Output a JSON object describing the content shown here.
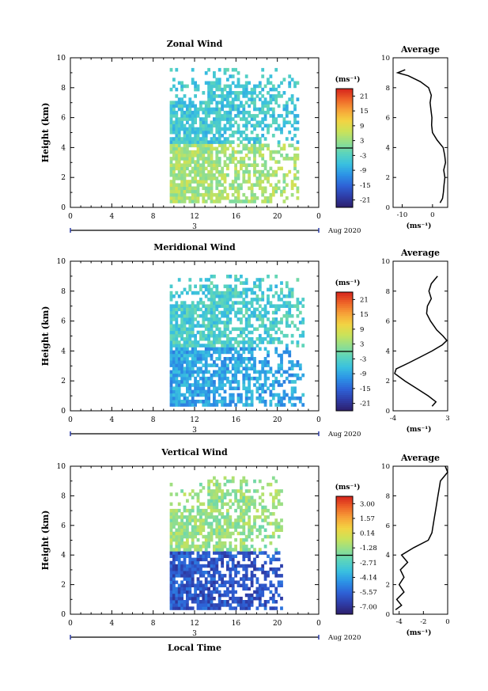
{
  "chart_data": [
    {
      "type": "heatmap",
      "title": "Zonal Wind",
      "ylabel": "Height (km)",
      "x_ticks": [
        "0",
        "4",
        "8",
        "12",
        "16",
        "20",
        "0"
      ],
      "y_ticks": [
        "0",
        "2",
        "4",
        "6",
        "8",
        "10"
      ],
      "xlim": [
        0,
        24
      ],
      "ylim": [
        0,
        10
      ],
      "date_label": "3",
      "date_suffix": "Aug 2020",
      "colorbar_unit": "(ms⁻¹)",
      "colorbar_ticks": [
        "21",
        "15",
        "9",
        "3",
        "-3",
        "-9",
        "-15",
        "-21"
      ],
      "colorbar_range": [
        -24,
        24
      ],
      "data_extent": {
        "time_start": 9.6,
        "time_end": 22.0,
        "height_min": 0.3,
        "height_max": 9.2
      },
      "dominant_values": {
        "below_4km": 4,
        "above_4km": -5
      },
      "profile": {
        "title": "Average",
        "xlabel": "(ms⁻¹)",
        "x_ticks": [
          "-10",
          "0"
        ],
        "xlim": [
          -13,
          5
        ],
        "y_ticks": [
          "0",
          "2",
          "4",
          "6",
          "8",
          "10"
        ],
        "heights": [
          0.3,
          0.6,
          1.0,
          1.5,
          2.0,
          2.5,
          3.0,
          3.5,
          4.0,
          4.5,
          5.0,
          5.5,
          6.0,
          6.5,
          7.0,
          7.5,
          8.0,
          8.4,
          8.8,
          9.0,
          9.2
        ],
        "values": [
          2.5,
          3.3,
          3.6,
          3.8,
          4.1,
          3.7,
          4.3,
          4.0,
          3.5,
          1.5,
          0.0,
          -0.3,
          -0.2,
          -0.5,
          -0.8,
          -0.4,
          -1.3,
          -4.0,
          -8.0,
          -11.5,
          -9.0
        ]
      }
    },
    {
      "type": "heatmap",
      "title": "Meridional Wind",
      "ylabel": "Height (km)",
      "x_ticks": [
        "0",
        "4",
        "8",
        "12",
        "16",
        "20",
        "0"
      ],
      "y_ticks": [
        "0",
        "2",
        "4",
        "6",
        "8",
        "10"
      ],
      "xlim": [
        0,
        24
      ],
      "ylim": [
        0,
        10
      ],
      "date_label": "3",
      "date_suffix": "Aug 2020",
      "colorbar_unit": "(ms⁻¹)",
      "colorbar_ticks": [
        "21",
        "15",
        "9",
        "3",
        "-3",
        "-9",
        "-15",
        "-21"
      ],
      "colorbar_range": [
        -24,
        24
      ],
      "data_extent": {
        "time_start": 9.6,
        "time_end": 22.5,
        "height_min": 0.3,
        "height_max": 9.0
      },
      "dominant_values": {
        "below_4km": -9,
        "above_4km": -4
      },
      "profile": {
        "title": "Average",
        "xlabel": "(ms⁻¹)",
        "x_ticks": [
          "-4",
          "3"
        ],
        "xlim": [
          -4,
          3
        ],
        "y_ticks": [
          "0",
          "2",
          "4",
          "6",
          "8",
          "10"
        ],
        "heights": [
          0.3,
          0.6,
          1.0,
          1.5,
          2.0,
          2.5,
          2.8,
          3.2,
          3.6,
          4.0,
          4.4,
          4.7,
          5.0,
          5.4,
          6.0,
          6.5,
          7.0,
          7.5,
          8.0,
          8.5,
          9.0
        ],
        "values": [
          1.0,
          1.5,
          0.5,
          -1.0,
          -2.5,
          -3.8,
          -3.6,
          -2.0,
          -0.5,
          1.0,
          2.3,
          2.9,
          2.4,
          1.6,
          0.8,
          0.3,
          0.4,
          0.9,
          0.6,
          0.9,
          1.7
        ]
      }
    },
    {
      "type": "heatmap",
      "title": "Vertical Wind",
      "ylabel": "Height (km)",
      "xlabel": "Local Time",
      "x_ticks": [
        "0",
        "4",
        "8",
        "12",
        "16",
        "20",
        "0"
      ],
      "y_ticks": [
        "0",
        "2",
        "4",
        "6",
        "8",
        "10"
      ],
      "xlim": [
        0,
        24
      ],
      "ylim": [
        0,
        10
      ],
      "date_label": "3",
      "date_suffix": "Aug 2020",
      "colorbar_unit": "(ms⁻¹)",
      "colorbar_ticks": [
        "3.00",
        "1.57",
        "0.14",
        "-1.28",
        "-2.71",
        "-4.14",
        "-5.57",
        "-7.00"
      ],
      "colorbar_range": [
        -7.7,
        3.7
      ],
      "data_extent": {
        "time_start": 9.6,
        "time_end": 20.5,
        "height_min": 0.3,
        "height_max": 9.2
      },
      "dominant_values": {
        "below_4km": -6,
        "above_4km": -1.3
      },
      "profile": {
        "title": "Average",
        "xlabel": "(ms⁻¹)",
        "x_ticks": [
          "-4",
          "-2",
          "0"
        ],
        "xlim": [
          -4.5,
          0
        ],
        "y_ticks": [
          "0",
          "2",
          "4",
          "6",
          "8",
          "10"
        ],
        "heights": [
          0.3,
          0.6,
          1.0,
          1.5,
          2.0,
          2.5,
          3.0,
          3.5,
          4.0,
          4.5,
          5.0,
          5.5,
          6.0,
          6.5,
          7.0,
          7.5,
          8.0,
          8.5,
          9.0,
          9.3,
          9.6,
          10.0
        ],
        "values": [
          -4.3,
          -3.8,
          -4.2,
          -3.6,
          -4.0,
          -3.6,
          -3.9,
          -3.3,
          -3.8,
          -2.8,
          -1.6,
          -1.3,
          -1.2,
          -1.1,
          -1.0,
          -0.9,
          -0.8,
          -0.7,
          -0.6,
          -0.3,
          0.0,
          -0.2
        ]
      }
    }
  ],
  "colors": {
    "colormap": [
      "#2d1e6b",
      "#2e3da8",
      "#2e62d6",
      "#2c92e6",
      "#39c0e0",
      "#5bd4bd",
      "#91de8e",
      "#c9e35a",
      "#f2d443",
      "#f7a238",
      "#ee6328",
      "#d5231b"
    ]
  }
}
